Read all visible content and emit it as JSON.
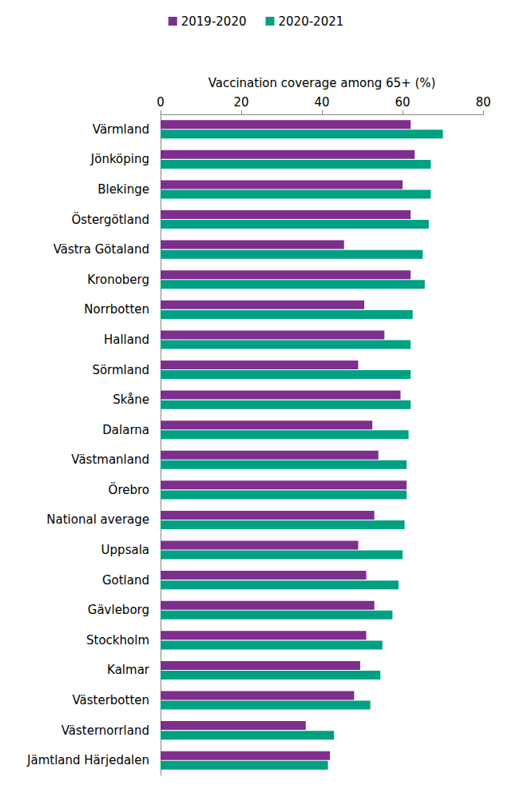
{
  "chart_data": {
    "type": "bar",
    "orientation": "horizontal",
    "xlabel": "Vaccination coverage among 65+ (%)",
    "categories": [
      "Värmland",
      "Jönköping",
      "Blekinge",
      "Östergötland",
      "Västra Götaland",
      "Kronoberg",
      "Norrbotten",
      "Halland",
      "Sörmland",
      "Skåne",
      "Dalarna",
      "Västmanland",
      "Örebro",
      "National average",
      "Uppsala",
      "Gotland",
      "Gävleborg",
      "Stockholm",
      "Kalmar",
      "Västerbotten",
      "Västernorrland",
      "Jämtland Härjedalen"
    ],
    "series": [
      {
        "name": "2019-2020",
        "color": "#7e2f8e",
        "values": [
          62,
          63,
          60,
          62,
          45.5,
          62,
          50.5,
          55.5,
          49,
          59.5,
          52.5,
          54,
          61,
          53,
          49,
          51,
          53,
          51,
          49.5,
          48,
          36,
          42
        ]
      },
      {
        "name": "2020-2021",
        "color": "#00a082",
        "values": [
          70,
          67,
          67,
          66.5,
          65,
          65.5,
          62.5,
          62,
          62,
          62,
          61.5,
          61,
          61,
          60.5,
          60,
          59,
          57.5,
          55,
          54.5,
          52,
          43,
          41.5
        ]
      }
    ],
    "xlim": [
      0,
      80
    ],
    "xticks": [
      0,
      20,
      40,
      60,
      80
    ],
    "grid": false,
    "legend": "top"
  }
}
